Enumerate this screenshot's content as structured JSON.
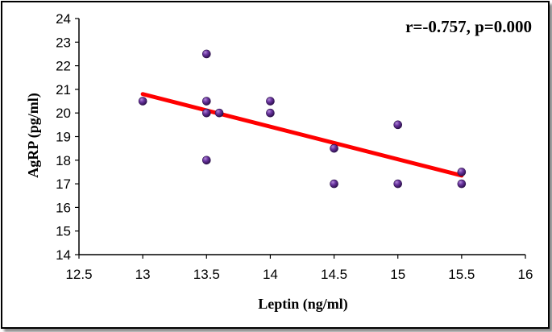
{
  "chart_data": {
    "type": "scatter",
    "title": "",
    "xlabel": "Leptin (ng/ml)",
    "ylabel": "AgRP (pg/ml)",
    "xlim": [
      12.5,
      16
    ],
    "ylim": [
      14,
      24
    ],
    "xticks": [
      "12.5",
      "13",
      "13.5",
      "14",
      "14.5",
      "15",
      "15.5",
      "16"
    ],
    "yticks": [
      "14",
      "15",
      "16",
      "17",
      "18",
      "19",
      "20",
      "21",
      "22",
      "23",
      "24"
    ],
    "grid": false,
    "annotation": "r=-0.757, p=0.000",
    "points": [
      {
        "x": 13.0,
        "y": 20.5
      },
      {
        "x": 13.5,
        "y": 22.5
      },
      {
        "x": 13.5,
        "y": 20.5
      },
      {
        "x": 13.5,
        "y": 20.0
      },
      {
        "x": 13.5,
        "y": 18.0
      },
      {
        "x": 13.6,
        "y": 20.0
      },
      {
        "x": 14.0,
        "y": 20.5
      },
      {
        "x": 14.0,
        "y": 20.0
      },
      {
        "x": 14.5,
        "y": 18.5
      },
      {
        "x": 14.5,
        "y": 17.0
      },
      {
        "x": 15.0,
        "y": 19.5
      },
      {
        "x": 15.0,
        "y": 17.0
      },
      {
        "x": 15.5,
        "y": 17.5
      },
      {
        "x": 15.5,
        "y": 17.0
      }
    ],
    "trendline": {
      "x": [
        13.0,
        15.5
      ],
      "y": [
        20.8,
        17.35
      ]
    },
    "colors": {
      "points": "#5b2a86",
      "trendline": "#ff0000"
    }
  }
}
